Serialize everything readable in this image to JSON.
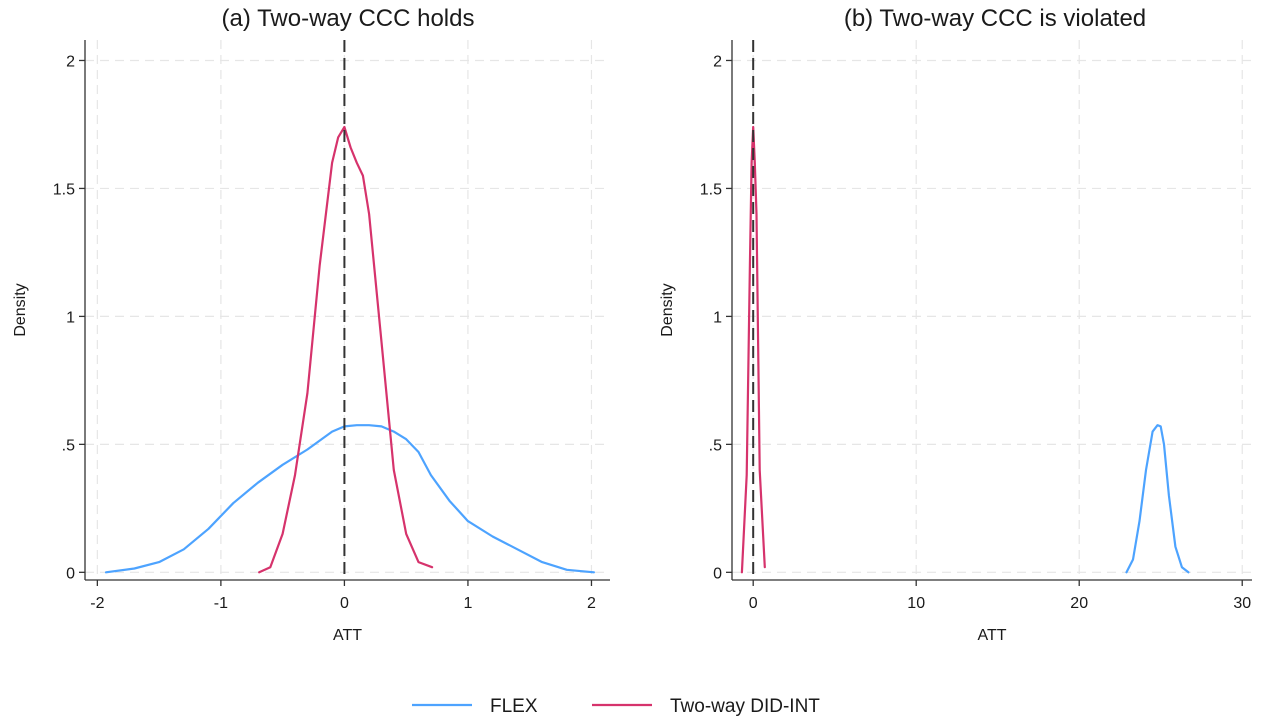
{
  "legend": {
    "placement": "bottom-center",
    "items": [
      {
        "label": "FLEX",
        "color": "#4da3ff"
      },
      {
        "label": "Two-way DID-INT",
        "color": "#d6336c"
      }
    ]
  },
  "chart_data": [
    {
      "type": "line",
      "title": "(a) Two-way CCC holds",
      "xlabel": "ATT",
      "ylabel": "Density",
      "xlim": [
        -2.1,
        2.15
      ],
      "ylim": [
        -0.03,
        2.08
      ],
      "xticks": [
        -2,
        -1,
        0,
        1,
        2
      ],
      "xtick_labels": [
        "-2",
        "-1",
        "0",
        "1",
        "2"
      ],
      "yticks": [
        0,
        0.5,
        1,
        1.5,
        2
      ],
      "ytick_labels": [
        "0",
        ".5",
        "1",
        "1.5",
        "2"
      ],
      "grid": true,
      "reference_line": {
        "x": 0,
        "style": "dashed",
        "color": "#333333"
      },
      "series": [
        {
          "name": "FLEX",
          "color": "#4da3ff",
          "x": [
            -1.93,
            -1.7,
            -1.5,
            -1.3,
            -1.1,
            -0.9,
            -0.7,
            -0.5,
            -0.3,
            -0.1,
            0.0,
            0.1,
            0.2,
            0.3,
            0.4,
            0.5,
            0.6,
            0.7,
            0.85,
            1.0,
            1.2,
            1.4,
            1.6,
            1.8,
            2.02
          ],
          "y": [
            0.0,
            0.015,
            0.04,
            0.09,
            0.17,
            0.27,
            0.35,
            0.42,
            0.48,
            0.55,
            0.57,
            0.575,
            0.575,
            0.57,
            0.55,
            0.52,
            0.47,
            0.38,
            0.28,
            0.2,
            0.14,
            0.09,
            0.04,
            0.01,
            0.0
          ]
        },
        {
          "name": "Two-way DID-INT",
          "color": "#d6336c",
          "x": [
            -0.69,
            -0.6,
            -0.5,
            -0.4,
            -0.3,
            -0.2,
            -0.1,
            -0.05,
            0.0,
            0.05,
            0.1,
            0.15,
            0.2,
            0.25,
            0.3,
            0.4,
            0.5,
            0.6,
            0.71
          ],
          "y": [
            0.0,
            0.02,
            0.15,
            0.38,
            0.7,
            1.2,
            1.6,
            1.7,
            1.74,
            1.66,
            1.6,
            1.55,
            1.4,
            1.15,
            0.9,
            0.4,
            0.15,
            0.04,
            0.02
          ]
        }
      ]
    },
    {
      "type": "line",
      "title": "(b) Two-way CCC is violated",
      "xlabel": "ATT",
      "ylabel": "Density",
      "xlim": [
        -1.3,
        30.6
      ],
      "ylim": [
        -0.03,
        2.08
      ],
      "xticks": [
        0,
        10,
        20,
        30
      ],
      "xtick_labels": [
        "0",
        "10",
        "20",
        "30"
      ],
      "yticks": [
        0,
        0.5,
        1,
        1.5,
        2
      ],
      "ytick_labels": [
        "0",
        ".5",
        "1",
        "1.5",
        "2"
      ],
      "grid": true,
      "reference_line": {
        "x": 0,
        "style": "dashed",
        "color": "#333333"
      },
      "series": [
        {
          "name": "FLEX",
          "color": "#4da3ff",
          "x": [
            22.9,
            23.3,
            23.7,
            24.1,
            24.5,
            24.8,
            25.0,
            25.2,
            25.5,
            25.9,
            26.3,
            26.7
          ],
          "y": [
            0.0,
            0.05,
            0.2,
            0.4,
            0.55,
            0.575,
            0.57,
            0.5,
            0.3,
            0.1,
            0.02,
            0.0
          ]
        },
        {
          "name": "Two-way DID-INT",
          "color": "#d6336c",
          "x": [
            -0.69,
            -0.4,
            -0.2,
            -0.1,
            0.0,
            0.1,
            0.2,
            0.4,
            0.71
          ],
          "y": [
            0.0,
            0.38,
            1.2,
            1.6,
            1.74,
            1.6,
            1.4,
            0.4,
            0.02
          ]
        }
      ]
    }
  ]
}
